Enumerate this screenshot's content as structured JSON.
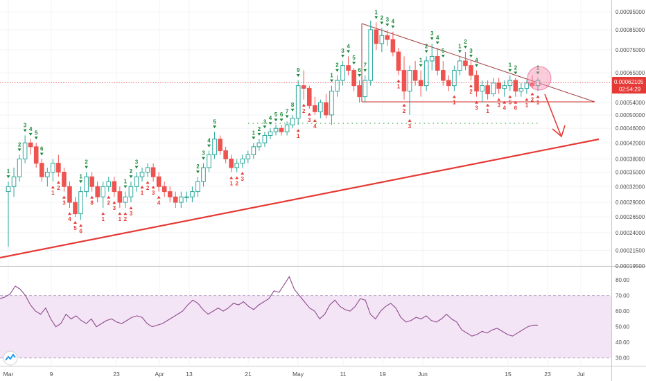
{
  "chart_data": [
    {
      "type": "candlestick",
      "panel": "price",
      "y_axis": {
        "ticks": [
          "0.00095000",
          "0.00085000",
          "0.00075000",
          "0.00065000",
          "0.00054000",
          "0.00050000",
          "0.00046000",
          "0.00042000",
          "0.00038000",
          "0.00035000",
          "0.00032000",
          "0.00029000",
          "0.00026500",
          "0.00024000",
          "0.00021500",
          "0.00019500"
        ],
        "scale": "log",
        "ylim": [
          0.000195,
          0.00098
        ]
      },
      "x_axis": {
        "tick_labels": [
          "Mar",
          "9",
          "23",
          "Apr",
          "13",
          "21",
          "May",
          "11",
          "19",
          "Jun",
          "15",
          "23",
          "Jul"
        ]
      },
      "current_price": {
        "value": "0.00062105",
        "countdown": "02:54:29",
        "color": "#e53935"
      },
      "candles": [
        [
          0.00031,
          0.00033,
          0.00022,
          0.00032
        ],
        [
          0.00032,
          0.00036,
          0.0003,
          0.00034
        ],
        [
          0.00034,
          0.00039,
          0.00033,
          0.00038
        ],
        [
          0.00038,
          0.00044,
          0.00037,
          0.00042
        ],
        [
          0.00042,
          0.00043,
          0.00039,
          0.00041
        ],
        [
          0.00041,
          0.00042,
          0.00036,
          0.00037
        ],
        [
          0.00037,
          0.00038,
          0.00033,
          0.00034
        ],
        [
          0.00034,
          0.00036,
          0.00032,
          0.00035
        ],
        [
          0.00035,
          0.00038,
          0.00033,
          0.00037
        ],
        [
          0.00037,
          0.00039,
          0.00034,
          0.00035
        ],
        [
          0.00035,
          0.00036,
          0.00031,
          0.00032
        ],
        [
          0.00032,
          0.00033,
          0.00028,
          0.00029
        ],
        [
          0.00029,
          0.0003,
          0.000265,
          0.00027
        ],
        [
          0.00027,
          0.00032,
          0.00026,
          0.00031
        ],
        [
          0.00031,
          0.00035,
          0.0003,
          0.00034
        ],
        [
          0.00034,
          0.00035,
          0.00031,
          0.00032
        ],
        [
          0.00032,
          0.00033,
          0.00029,
          0.0003
        ],
        [
          0.0003,
          0.00033,
          0.00028,
          0.00032
        ],
        [
          0.00032,
          0.00034,
          0.00031,
          0.00033
        ],
        [
          0.00033,
          0.00034,
          0.0003,
          0.00031
        ],
        [
          0.00031,
          0.00032,
          0.00028,
          0.00029
        ],
        [
          0.00029,
          0.00031,
          0.00028,
          0.0003
        ],
        [
          0.0003,
          0.00033,
          0.00029,
          0.00032
        ],
        [
          0.00032,
          0.00035,
          0.00031,
          0.00034
        ],
        [
          0.00034,
          0.00036,
          0.00033,
          0.00035
        ],
        [
          0.00035,
          0.00037,
          0.00034,
          0.00036
        ],
        [
          0.00036,
          0.00037,
          0.00033,
          0.00034
        ],
        [
          0.00034,
          0.00035,
          0.00031,
          0.00032
        ],
        [
          0.00032,
          0.00033,
          0.0003,
          0.00031
        ],
        [
          0.00031,
          0.00032,
          0.00029,
          0.0003
        ],
        [
          0.0003,
          0.00031,
          0.00028,
          0.00029
        ],
        [
          0.00029,
          0.00031,
          0.00028,
          0.0003
        ],
        [
          0.0003,
          0.00031,
          0.00029,
          0.0003
        ],
        [
          0.0003,
          0.00032,
          0.00029,
          0.00031
        ],
        [
          0.00031,
          0.00034,
          0.0003,
          0.00033
        ],
        [
          0.00033,
          0.00037,
          0.00032,
          0.00036
        ],
        [
          0.00036,
          0.0004,
          0.00035,
          0.00039
        ],
        [
          0.00039,
          0.00045,
          0.00038,
          0.00043
        ],
        [
          0.00043,
          0.00044,
          0.00039,
          0.0004
        ],
        [
          0.0004,
          0.00041,
          0.00037,
          0.00038
        ],
        [
          0.00038,
          0.00039,
          0.00035,
          0.00036
        ],
        [
          0.00036,
          0.00038,
          0.00035,
          0.00037
        ],
        [
          0.00037,
          0.00039,
          0.00036,
          0.00038
        ],
        [
          0.00038,
          0.0004,
          0.00037,
          0.00039
        ],
        [
          0.00039,
          0.00042,
          0.00038,
          0.00041
        ],
        [
          0.00041,
          0.00043,
          0.0004,
          0.00042
        ],
        [
          0.00042,
          0.00045,
          0.00041,
          0.00044
        ],
        [
          0.00044,
          0.00046,
          0.00043,
          0.00045
        ],
        [
          0.00045,
          0.00047,
          0.00044,
          0.00046
        ],
        [
          0.00046,
          0.00047,
          0.00044,
          0.00045
        ],
        [
          0.00045,
          0.00048,
          0.00044,
          0.00047
        ],
        [
          0.00047,
          0.0005,
          0.00046,
          0.00049
        ],
        [
          0.00049,
          0.00062,
          0.00047,
          0.0006
        ],
        [
          0.0006,
          0.00066,
          0.00055,
          0.00059
        ],
        [
          0.00059,
          0.0006,
          0.00052,
          0.00053
        ],
        [
          0.00053,
          0.00056,
          0.0005,
          0.00051
        ],
        [
          0.00051,
          0.00055,
          0.00049,
          0.00054
        ],
        [
          0.00054,
          0.00057,
          0.00049,
          0.0005
        ],
        [
          0.0005,
          0.0006,
          0.00047,
          0.00058
        ],
        [
          0.00058,
          0.00064,
          0.00056,
          0.00062
        ],
        [
          0.00062,
          0.0007,
          0.0006,
          0.00068
        ],
        [
          0.00068,
          0.00072,
          0.00064,
          0.00066
        ],
        [
          0.00066,
          0.00067,
          0.00058,
          0.0006
        ],
        [
          0.0006,
          0.00062,
          0.00054,
          0.00056
        ],
        [
          0.00056,
          0.00064,
          0.00054,
          0.00062
        ],
        [
          0.00062,
          0.0009,
          0.0006,
          0.00085
        ],
        [
          0.00085,
          0.00089,
          0.00075,
          0.00078
        ],
        [
          0.00078,
          0.00086,
          0.00074,
          0.00082
        ],
        [
          0.00082,
          0.00085,
          0.00077,
          0.0008
        ],
        [
          0.0008,
          0.00084,
          0.00072,
          0.00074
        ],
        [
          0.00074,
          0.00076,
          0.00064,
          0.00066
        ],
        [
          0.00066,
          0.00072,
          0.00055,
          0.00058
        ],
        [
          0.00058,
          0.00068,
          0.0005,
          0.00066
        ],
        [
          0.00066,
          0.0007,
          0.0006,
          0.00062
        ],
        [
          0.00062,
          0.00066,
          0.00056,
          0.0006
        ],
        [
          0.0006,
          0.00072,
          0.00058,
          0.0007
        ],
        [
          0.0007,
          0.00078,
          0.00066,
          0.00072
        ],
        [
          0.00072,
          0.00076,
          0.00064,
          0.00066
        ],
        [
          0.00066,
          0.0007,
          0.0006,
          0.00062
        ],
        [
          0.00062,
          0.00064,
          0.00058,
          0.0006
        ],
        [
          0.0006,
          0.00068,
          0.00058,
          0.00066
        ],
        [
          0.00066,
          0.00072,
          0.00064,
          0.0007
        ],
        [
          0.0007,
          0.00074,
          0.00066,
          0.00068
        ],
        [
          0.00068,
          0.0007,
          0.00062,
          0.00064
        ],
        [
          0.00064,
          0.00066,
          0.00056,
          0.00058
        ],
        [
          0.00058,
          0.00062,
          0.00054,
          0.0006
        ],
        [
          0.0006,
          0.00062,
          0.00055,
          0.00057
        ],
        [
          0.00057,
          0.00063,
          0.00056,
          0.00061
        ],
        [
          0.00061,
          0.00063,
          0.00057,
          0.00059
        ],
        [
          0.00059,
          0.00062,
          0.00056,
          0.0006
        ],
        [
          0.0006,
          0.00064,
          0.00058,
          0.00062
        ],
        [
          0.00062,
          0.00063,
          0.00056,
          0.00058
        ],
        [
          0.00058,
          0.00061,
          0.00056,
          0.00059
        ],
        [
          0.00059,
          0.00062,
          0.00057,
          0.00061
        ],
        [
          0.00061,
          0.00064,
          0.00059,
          0.0006
        ],
        [
          0.0006,
          0.00063,
          0.00058,
          0.00062
        ]
      ],
      "td_sequential": {
        "buy_counts_red_below": [
          "1",
          "2",
          "3",
          "4",
          "5",
          "6",
          "7",
          "8",
          "9"
        ],
        "sell_counts_green_above": [
          "1",
          "2",
          "3",
          "4",
          "5",
          "6",
          "7",
          "8",
          "9"
        ]
      },
      "annotations": {
        "rising_support_line_color": "#e53935",
        "descending_triangle_color": "#a04040",
        "dotted_support_color": "#4caf50",
        "projection_arrow_color": "#e53935",
        "highlight_circle_color": "#f48fb1"
      }
    },
    {
      "type": "line",
      "panel": "rsi",
      "y_axis": {
        "ticks": [
          "80.00",
          "70.00",
          "60.00",
          "50.00",
          "40.00",
          "30.00"
        ],
        "ylim": [
          25,
          88
        ]
      },
      "band": {
        "upper": 70,
        "lower": 30,
        "fill": "#f3e5f5"
      },
      "line_color": "#8e4a8e",
      "values": [
        68,
        69,
        71,
        76,
        74,
        70,
        64,
        60,
        58,
        62,
        55,
        50,
        52,
        58,
        55,
        57,
        54,
        52,
        55,
        50,
        52,
        54,
        55,
        53,
        52,
        54,
        56,
        57,
        56,
        52,
        50,
        51,
        52,
        54,
        56,
        58,
        60,
        64,
        67,
        65,
        61,
        58,
        60,
        62,
        60,
        62,
        65,
        64,
        66,
        63,
        61,
        64,
        66,
        68,
        73,
        72,
        77,
        82,
        74,
        70,
        66,
        62,
        60,
        55,
        58,
        64,
        67,
        63,
        61,
        60,
        63,
        68,
        67,
        58,
        55,
        60,
        63,
        65,
        62,
        56,
        53,
        54,
        56,
        55,
        57,
        54,
        53,
        55,
        58,
        55,
        53,
        48,
        46,
        44,
        45,
        47,
        46,
        48,
        49,
        47,
        45,
        44,
        46,
        48,
        50,
        51,
        51
      ]
    }
  ]
}
